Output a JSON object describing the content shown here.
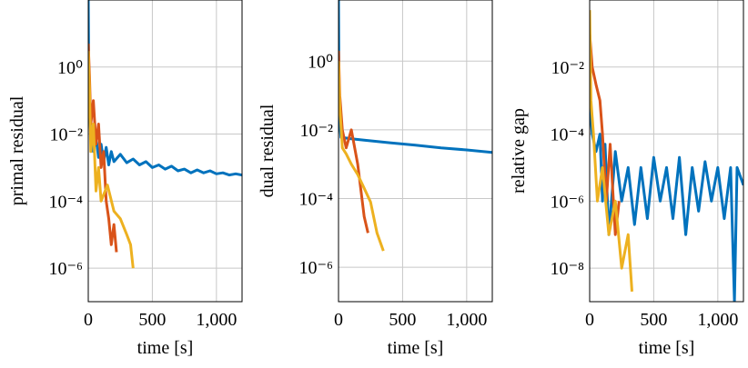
{
  "chart_data": [
    {
      "type": "line",
      "ylog": true,
      "grid": true,
      "xlabel": "time [s]",
      "ylabel": "primal residual",
      "xlim": [
        0,
        1200
      ],
      "xticks": [
        0,
        500,
        {
          "value": 1000,
          "label": "1,000"
        }
      ],
      "ylim": [
        1e-07,
        100
      ],
      "yticks": [
        {
          "value": 1e-06,
          "label": "10⁻⁶"
        },
        {
          "value": 0.0001,
          "label": "10⁻⁴"
        },
        {
          "value": 0.01,
          "label": "10⁻²"
        },
        {
          "value": 1,
          "label": "10⁰"
        }
      ],
      "series": [
        {
          "color": "#0072bd",
          "x": [
            0,
            5,
            20,
            40,
            60,
            80,
            100,
            120,
            140,
            160,
            180,
            200,
            250,
            300,
            350,
            400,
            450,
            500,
            550,
            600,
            650,
            700,
            750,
            800,
            850,
            900,
            950,
            1000,
            1050,
            1100,
            1150,
            1200
          ],
          "values": [
            100,
            0.1,
            0.01,
            0.003,
            0.008,
            0.002,
            0.005,
            0.0015,
            0.004,
            0.0012,
            0.003,
            0.0015,
            0.0025,
            0.0014,
            0.0018,
            0.0012,
            0.0015,
            0.001,
            0.0012,
            0.0009,
            0.0011,
            0.0008,
            0.0009,
            0.0007,
            0.00085,
            0.0007,
            0.0008,
            0.00065,
            0.0007,
            0.0006,
            0.00065,
            0.0006
          ]
        },
        {
          "color": "#d95319",
          "x": [
            0,
            10,
            20,
            40,
            60,
            80,
            100,
            120,
            140,
            160,
            180,
            200,
            220
          ],
          "values": [
            5,
            0.5,
            0.02,
            0.1,
            0.005,
            0.02,
            0.001,
            0.003,
            0.0001,
            3e-05,
            5e-06,
            2e-05,
            3e-06
          ]
        },
        {
          "color": "#edb120",
          "x": [
            0,
            10,
            20,
            40,
            60,
            80,
            100,
            150,
            200,
            250,
            300,
            330,
            350
          ],
          "values": [
            3,
            0.2,
            0.003,
            0.02,
            0.0002,
            0.001,
            0.0001,
            0.0003,
            5e-05,
            3e-05,
            1e-05,
            5e-06,
            1e-06
          ]
        }
      ]
    },
    {
      "type": "line",
      "ylog": true,
      "grid": true,
      "xlabel": "time [s]",
      "ylabel": "dual residual",
      "xlim": [
        0,
        1200
      ],
      "xticks": [
        0,
        500,
        {
          "value": 1000,
          "label": "1,000"
        }
      ],
      "ylim": [
        1e-07,
        60
      ],
      "yticks": [
        {
          "value": 1e-06,
          "label": "10⁻⁶"
        },
        {
          "value": 0.0001,
          "label": "10⁻⁴"
        },
        {
          "value": 0.01,
          "label": "10⁻²"
        },
        {
          "value": 1,
          "label": "10⁰"
        }
      ],
      "series": [
        {
          "color": "#0072bd",
          "x": [
            0,
            5,
            20,
            100,
            200,
            400,
            600,
            800,
            1000,
            1200
          ],
          "values": [
            60,
            0.02,
            0.006,
            0.0055,
            0.005,
            0.0042,
            0.0036,
            0.003,
            0.0026,
            0.0022
          ]
        },
        {
          "color": "#d95319",
          "x": [
            0,
            10,
            30,
            60,
            100,
            150,
            200,
            230
          ],
          "values": [
            2,
            0.1,
            0.01,
            0.003,
            0.01,
            0.001,
            3e-05,
            1e-05
          ]
        },
        {
          "color": "#edb120",
          "x": [
            0,
            10,
            30,
            60,
            100,
            150,
            200,
            250,
            300,
            350
          ],
          "values": [
            1,
            0.05,
            0.003,
            0.002,
            0.001,
            0.0005,
            0.0002,
            8e-05,
            1e-05,
            3e-06
          ]
        }
      ]
    },
    {
      "type": "line",
      "ylog": true,
      "grid": true,
      "xlabel": "time [s]",
      "ylabel": "relative gap",
      "xlim": [
        0,
        1200
      ],
      "xticks": [
        0,
        500,
        {
          "value": 1000,
          "label": "1,000"
        }
      ],
      "ylim": [
        1e-09,
        1
      ],
      "yticks": [
        {
          "value": 1e-08,
          "label": "10⁻⁸"
        },
        {
          "value": 1e-06,
          "label": "10⁻⁶"
        },
        {
          "value": 0.0001,
          "label": "10⁻⁴"
        },
        {
          "value": 0.01,
          "label": "10⁻²"
        }
      ],
      "series": [
        {
          "color": "#0072bd",
          "x": [
            0,
            20,
            50,
            80,
            100,
            120,
            150,
            200,
            250,
            300,
            350,
            400,
            450,
            500,
            550,
            600,
            650,
            700,
            750,
            800,
            850,
            900,
            950,
            1000,
            1050,
            1100,
            1130,
            1150,
            1200
          ],
          "values": [
            0.001,
            0.0001,
            3e-05,
            0.0001,
            1e-06,
            5e-05,
            1e-07,
            3e-05,
            1e-06,
            1e-05,
            2e-07,
            1e-05,
            3e-07,
            2e-05,
            1e-06,
            1e-05,
            3e-07,
            2e-05,
            1e-07,
            1e-05,
            5e-07,
            1.5e-05,
            1e-06,
            1e-05,
            3e-07,
            1e-05,
            1e-09,
            1e-05,
            3e-06
          ]
        },
        {
          "color": "#d95319",
          "x": [
            0,
            20,
            50,
            80,
            100,
            130,
            160,
            200,
            230
          ],
          "values": [
            0.1,
            0.01,
            0.003,
            0.001,
            0.0001,
            1e-06,
            5e-05,
            1e-07,
            1e-06
          ]
        },
        {
          "color": "#edb120",
          "x": [
            0,
            10,
            30,
            60,
            100,
            150,
            200,
            250,
            300,
            330
          ],
          "values": [
            0.5,
            0.001,
            0.0001,
            1e-06,
            1e-05,
            1e-07,
            1e-06,
            1e-08,
            1e-07,
            2e-09
          ]
        }
      ]
    }
  ]
}
